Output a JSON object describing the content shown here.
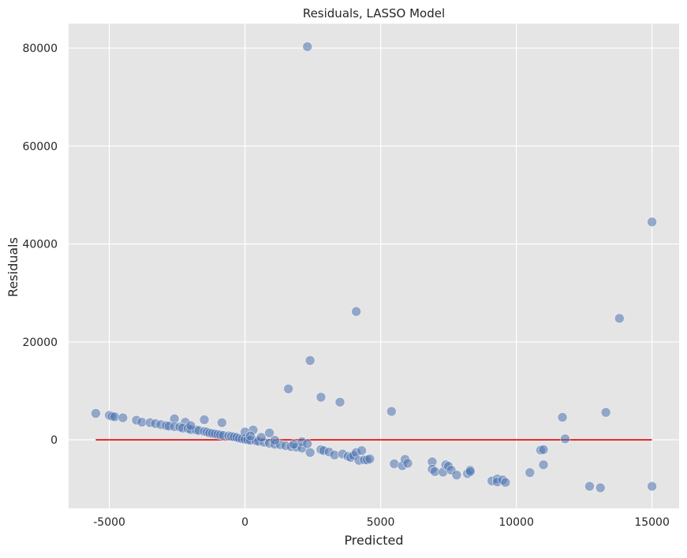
{
  "chart_data": {
    "type": "scatter",
    "title": "Residuals, LASSO Model",
    "xlabel": "Predicted",
    "ylabel": "Residuals",
    "xlim": [
      -6500,
      16000
    ],
    "ylim": [
      -14000,
      85000
    ],
    "xticks": [
      -5000,
      0,
      5000,
      10000,
      15000
    ],
    "xtick_labels": [
      "-5000",
      "0",
      "5000",
      "10000",
      "15000"
    ],
    "yticks": [
      0,
      20000,
      40000,
      60000,
      80000
    ],
    "ytick_labels": [
      "0",
      "20000",
      "40000",
      "60000",
      "80000"
    ],
    "grid": true,
    "background": "#e5e5e5",
    "point_color": "#4c72b0",
    "line_color": "#e00000",
    "zero_line": {
      "x": [
        -5500,
        15000
      ],
      "y": [
        0,
        0
      ]
    },
    "points": [
      [
        2300,
        80300
      ],
      [
        15000,
        44500
      ],
      [
        13800,
        24800
      ],
      [
        4100,
        26200
      ],
      [
        2400,
        16200
      ],
      [
        1600,
        10400
      ],
      [
        2800,
        8700
      ],
      [
        3500,
        7700
      ],
      [
        5400,
        5800
      ],
      [
        13300,
        5600
      ],
      [
        11700,
        4600
      ],
      [
        11800,
        200
      ],
      [
        -1500,
        4100
      ],
      [
        -2600,
        4300
      ],
      [
        -850,
        3500
      ],
      [
        -2200,
        3600
      ],
      [
        -5500,
        5400
      ],
      [
        -5000,
        5000
      ],
      [
        -4900,
        4800
      ],
      [
        -4800,
        4700
      ],
      [
        -4500,
        4500
      ],
      [
        -4000,
        4000
      ],
      [
        -3800,
        3600
      ],
      [
        -3500,
        3500
      ],
      [
        -3300,
        3300
      ],
      [
        -3100,
        3100
      ],
      [
        -2900,
        2900
      ],
      [
        -2800,
        2800
      ],
      [
        -2600,
        2700
      ],
      [
        -2400,
        2600
      ],
      [
        -2300,
        2400
      ],
      [
        -2100,
        2300
      ],
      [
        -2000,
        2100
      ],
      [
        -1800,
        2000
      ],
      [
        -1700,
        1900
      ],
      [
        -1500,
        1700
      ],
      [
        -1400,
        1600
      ],
      [
        -1300,
        1400
      ],
      [
        -1200,
        1300
      ],
      [
        -1100,
        1200
      ],
      [
        -1000,
        1100
      ],
      [
        -900,
        1000
      ],
      [
        -800,
        900
      ],
      [
        -600,
        800
      ],
      [
        -500,
        700
      ],
      [
        -400,
        600
      ],
      [
        -300,
        500
      ],
      [
        -200,
        300
      ],
      [
        -100,
        200
      ],
      [
        0,
        100
      ],
      [
        100,
        0
      ],
      [
        200,
        -100
      ],
      [
        400,
        -200
      ],
      [
        500,
        -300
      ],
      [
        700,
        -500
      ],
      [
        900,
        -700
      ],
      [
        1100,
        -900
      ],
      [
        1300,
        -1000
      ],
      [
        1500,
        -1200
      ],
      [
        1700,
        -1400
      ],
      [
        1900,
        -1500
      ],
      [
        2100,
        -1700
      ],
      [
        2400,
        -2600
      ],
      [
        2800,
        -2000
      ],
      [
        2900,
        -2200
      ],
      [
        3100,
        -2500
      ],
      [
        3300,
        -3100
      ],
      [
        3600,
        -2900
      ],
      [
        3800,
        -3400
      ],
      [
        3900,
        -3600
      ],
      [
        4000,
        -3200
      ],
      [
        4100,
        -2600
      ],
      [
        4200,
        -4200
      ],
      [
        4300,
        -2200
      ],
      [
        4400,
        -4100
      ],
      [
        4500,
        -4100
      ],
      [
        4600,
        -3900
      ],
      [
        300,
        2000
      ],
      [
        0,
        1600
      ],
      [
        900,
        1400
      ],
      [
        200,
        800
      ],
      [
        600,
        500
      ],
      [
        -2000,
        2900
      ],
      [
        1100,
        -100
      ],
      [
        1800,
        -900
      ],
      [
        2100,
        -400
      ],
      [
        2300,
        -800
      ],
      [
        5500,
        -4900
      ],
      [
        5800,
        -5300
      ],
      [
        5900,
        -4000
      ],
      [
        6000,
        -4800
      ],
      [
        6900,
        -4500
      ],
      [
        6900,
        -6000
      ],
      [
        7000,
        -6500
      ],
      [
        7300,
        -6600
      ],
      [
        7400,
        -5100
      ],
      [
        7500,
        -5400
      ],
      [
        7600,
        -6200
      ],
      [
        7800,
        -7200
      ],
      [
        8200,
        -6900
      ],
      [
        8300,
        -6200
      ],
      [
        8300,
        -6500
      ],
      [
        9100,
        -8400
      ],
      [
        9300,
        -8000
      ],
      [
        9300,
        -8600
      ],
      [
        9500,
        -8200
      ],
      [
        9600,
        -8700
      ],
      [
        10500,
        -6700
      ],
      [
        10900,
        -2100
      ],
      [
        11000,
        -2000
      ],
      [
        11000,
        -5100
      ],
      [
        12700,
        -9500
      ],
      [
        13100,
        -9800
      ],
      [
        15000,
        -9500
      ]
    ]
  }
}
